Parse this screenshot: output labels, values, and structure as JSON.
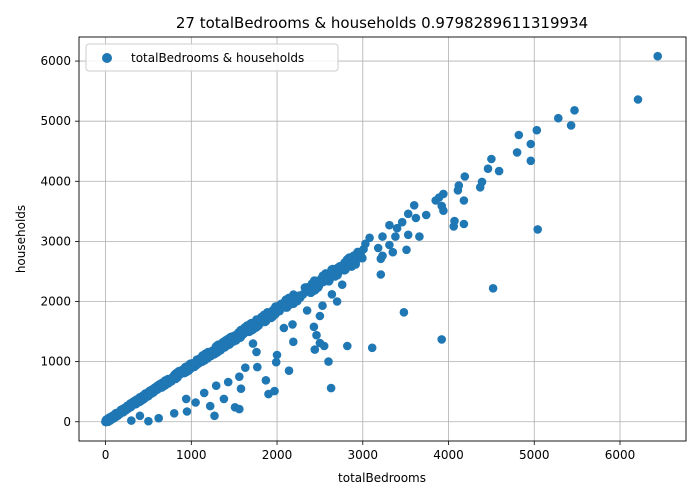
{
  "chart_data": {
    "type": "scatter",
    "title": "27 totalBedrooms & households 0.9798289611319934",
    "xlabel": "totalBedrooms",
    "ylabel": "households",
    "xlim": [
      -310,
      6770
    ],
    "ylim": [
      -320,
      6400
    ],
    "xticks": [
      0,
      1000,
      2000,
      3000,
      4000,
      5000,
      6000
    ],
    "yticks": [
      0,
      1000,
      2000,
      3000,
      4000,
      5000,
      6000
    ],
    "grid": true,
    "legend_position": "upper-left",
    "series": [
      {
        "name": "totalBedrooms & households",
        "color": "#1f77b4",
        "points": [
          [
            6440,
            6080
          ],
          [
            6210,
            5360
          ],
          [
            5470,
            5180
          ],
          [
            5280,
            5050
          ],
          [
            5430,
            4930
          ],
          [
            5030,
            4850
          ],
          [
            4820,
            4770
          ],
          [
            4960,
            4620
          ],
          [
            4800,
            4480
          ],
          [
            4960,
            4340
          ],
          [
            4500,
            4370
          ],
          [
            4590,
            4170
          ],
          [
            4460,
            4210
          ],
          [
            4190,
            4080
          ],
          [
            4390,
            3990
          ],
          [
            4120,
            3930
          ],
          [
            4370,
            3900
          ],
          [
            4110,
            3850
          ],
          [
            4180,
            3680
          ],
          [
            3940,
            3790
          ],
          [
            3890,
            3730
          ],
          [
            3850,
            3680
          ],
          [
            3920,
            3590
          ],
          [
            3940,
            3510
          ],
          [
            4070,
            3340
          ],
          [
            4060,
            3250
          ],
          [
            4180,
            3290
          ],
          [
            3600,
            3600
          ],
          [
            3620,
            3390
          ],
          [
            3740,
            3440
          ],
          [
            3530,
            3460
          ],
          [
            3460,
            3320
          ],
          [
            3400,
            3220
          ],
          [
            3310,
            3270
          ],
          [
            3230,
            3080
          ],
          [
            3080,
            3060
          ],
          [
            3030,
            2960
          ],
          [
            3010,
            2870
          ],
          [
            3180,
            2890
          ],
          [
            3310,
            2940
          ],
          [
            3350,
            2820
          ],
          [
            3230,
            2760
          ],
          [
            3210,
            2710
          ],
          [
            3660,
            3080
          ],
          [
            3530,
            3110
          ],
          [
            3510,
            2860
          ],
          [
            3380,
            3080
          ],
          [
            5040,
            3200
          ],
          [
            4520,
            2220
          ],
          [
            3210,
            2450
          ],
          [
            2700,
            2000
          ],
          [
            2530,
            1930
          ],
          [
            2500,
            1760
          ],
          [
            2430,
            1580
          ],
          [
            2460,
            1440
          ],
          [
            2500,
            1310
          ],
          [
            2550,
            1260
          ],
          [
            2440,
            1200
          ],
          [
            2820,
            1260
          ],
          [
            3110,
            1230
          ],
          [
            3480,
            1820
          ],
          [
            3920,
            1370
          ],
          [
            2600,
            1000
          ],
          [
            2630,
            560
          ],
          [
            2190,
            1330
          ],
          [
            2140,
            850
          ],
          [
            2000,
            1110
          ],
          [
            1990,
            990
          ],
          [
            1900,
            460
          ],
          [
            1970,
            510
          ],
          [
            1870,
            690
          ],
          [
            1770,
            910
          ],
          [
            1760,
            1160
          ],
          [
            1630,
            900
          ],
          [
            1580,
            550
          ],
          [
            1560,
            750
          ],
          [
            1510,
            240
          ],
          [
            1560,
            210
          ],
          [
            1430,
            660
          ],
          [
            1290,
            600
          ],
          [
            1270,
            100
          ],
          [
            1380,
            380
          ],
          [
            1150,
            480
          ],
          [
            1050,
            320
          ],
          [
            950,
            170
          ],
          [
            940,
            380
          ],
          [
            800,
            140
          ],
          [
            620,
            60
          ],
          [
            500,
            10
          ],
          [
            400,
            100
          ],
          [
            300,
            20
          ],
          [
            1220,
            260
          ],
          [
            1720,
            1300
          ],
          [
            2080,
            1560
          ],
          [
            2180,
            1620
          ],
          [
            2350,
            1850
          ],
          [
            2640,
            2120
          ],
          [
            2760,
            2280
          ]
        ],
        "band": {
          "x_max": 3000,
          "slope": 0.93,
          "spread": 140,
          "count": 900
        }
      }
    ]
  }
}
